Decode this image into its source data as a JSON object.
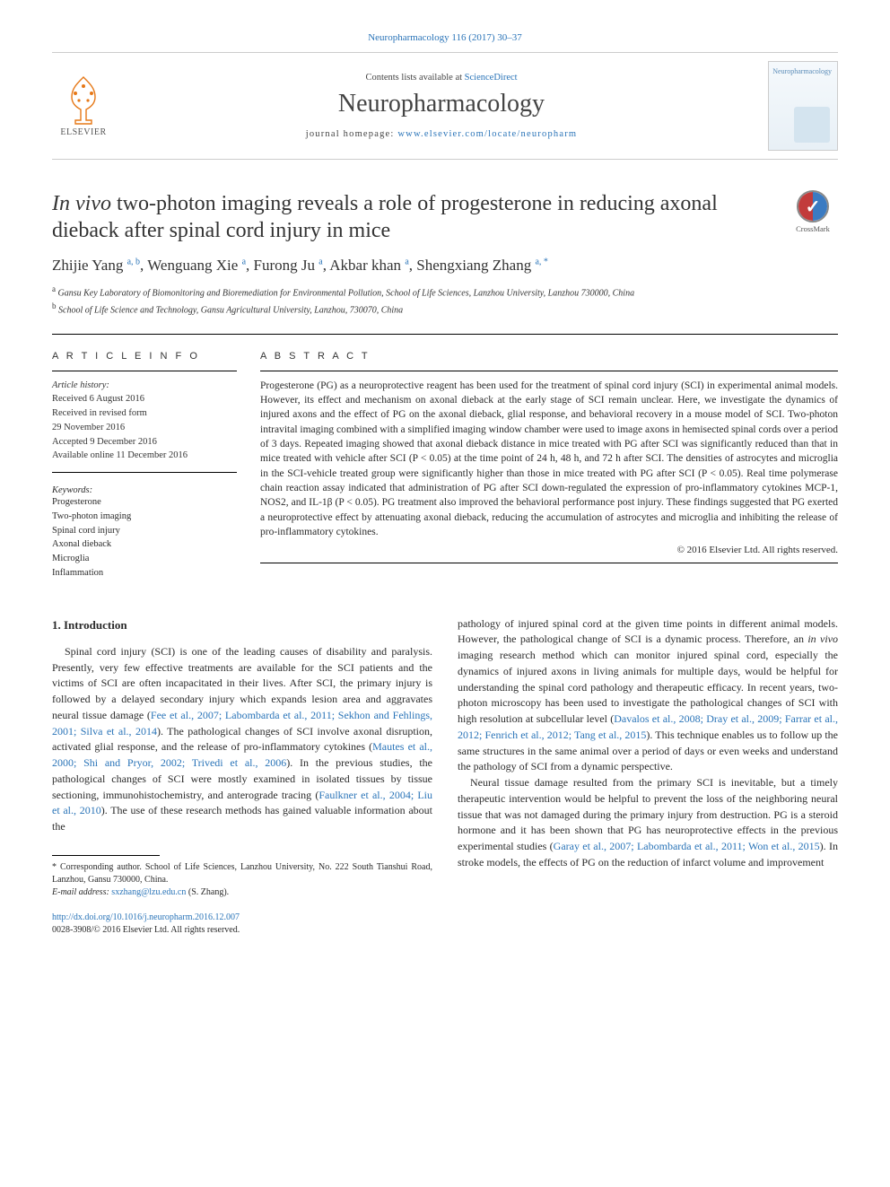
{
  "citation": "Neuropharmacology 116 (2017) 30–37",
  "masthead": {
    "contents_prefix": "Contents lists available at ",
    "contents_link": "ScienceDirect",
    "journal": "Neuropharmacology",
    "homepage_prefix": "journal homepage: ",
    "homepage_link": "www.elsevier.com/locate/neuropharm",
    "publisher": "ELSEVIER",
    "cover_title": "Neuropharmacology"
  },
  "title": {
    "italic_lead": "In vivo",
    "rest": " two-photon imaging reveals a role of progesterone in reducing axonal dieback after spinal cord injury in mice"
  },
  "crossmark_label": "CrossMark",
  "authors": [
    {
      "name": "Zhijie Yang",
      "sup": "a, b"
    },
    {
      "name": "Wenguang Xie",
      "sup": "a"
    },
    {
      "name": "Furong Ju",
      "sup": "a"
    },
    {
      "name": "Akbar khan",
      "sup": "a"
    },
    {
      "name": "Shengxiang Zhang",
      "sup": "a, *"
    }
  ],
  "affiliations": [
    {
      "sup": "a",
      "text": "Gansu Key Laboratory of Biomonitoring and Bioremediation for Environmental Pollution, School of Life Sciences, Lanzhou University, Lanzhou 730000, China"
    },
    {
      "sup": "b",
      "text": "School of Life Science and Technology, Gansu Agricultural University, Lanzhou, 730070, China"
    }
  ],
  "article_info": {
    "label": "A R T I C L E  I N F O",
    "history_label": "Article history:",
    "history": [
      "Received 6 August 2016",
      "Received in revised form",
      "29 November 2016",
      "Accepted 9 December 2016",
      "Available online 11 December 2016"
    ],
    "keywords_label": "Keywords:",
    "keywords": [
      "Progesterone",
      "Two-photon imaging",
      "Spinal cord injury",
      "Axonal dieback",
      "Microglia",
      "Inflammation"
    ]
  },
  "abstract": {
    "label": "A B S T R A C T",
    "text": "Progesterone (PG) as a neuroprotective reagent has been used for the treatment of spinal cord injury (SCI) in experimental animal models. However, its effect and mechanism on axonal dieback at the early stage of SCI remain unclear. Here, we investigate the dynamics of injured axons and the effect of PG on the axonal dieback, glial response, and behavioral recovery in a mouse model of SCI. Two-photon intravital imaging combined with a simplified imaging window chamber were used to image axons in hemisected spinal cords over a period of 3 days. Repeated imaging showed that axonal dieback distance in mice treated with PG after SCI was significantly reduced than that in mice treated with vehicle after SCI (P < 0.05) at the time point of 24 h, 48 h, and 72 h after SCI. The densities of astrocytes and microglia in the SCI-vehicle treated group were significantly higher than those in mice treated with PG after SCI (P < 0.05). Real time polymerase chain reaction assay indicated that administration of PG after SCI down-regulated the expression of pro-inflammatory cytokines MCP-1, NOS2, and IL-1β (P < 0.05). PG treatment also improved the behavioral performance post injury. These findings suggested that PG exerted a neuroprotective effect by attenuating axonal dieback, reducing the accumulation of astrocytes and microglia and inhibiting the release of pro-inflammatory cytokines.",
    "copyright": "© 2016 Elsevier Ltd. All rights reserved."
  },
  "body": {
    "heading": "1. Introduction",
    "left_para": "Spinal cord injury (SCI) is one of the leading causes of disability and paralysis. Presently, very few effective treatments are available for the SCI patients and the victims of SCI are often incapacitated in their lives. After SCI, the primary injury is followed by a delayed secondary injury which expands lesion area and aggravates neural tissue damage (",
    "left_ref1": "Fee et al., 2007; Labombarda et al., 2011; Sekhon and Fehlings, 2001; Silva et al., 2014",
    "left_mid1": "). The pathological changes of SCI involve axonal disruption, activated glial response, and the release of pro-inflammatory cytokines (",
    "left_ref2": "Mautes et al., 2000; Shi and Pryor, 2002; Trivedi et al., 2006",
    "left_mid2": "). In the previous studies, the pathological changes of SCI were mostly examined in isolated tissues by tissue sectioning, immunohistochemistry, and anterograde tracing (",
    "left_ref3": "Faulkner et al., 2004; Liu et al., 2010",
    "left_end": "). The use of these research methods has gained valuable information about the",
    "right_p1_a": "pathology of injured spinal cord at the given time points in different animal models. However, the pathological change of SCI is a dynamic process. Therefore, an ",
    "right_p1_italic": "in vivo",
    "right_p1_b": " imaging research method which can monitor injured spinal cord, especially the dynamics of injured axons in living animals for multiple days, would be helpful for understanding the spinal cord pathology and therapeutic efficacy. In recent years, two-photon microscopy has been used to investigate the pathological changes of SCI with high resolution at subcellular level (",
    "right_ref1": "Davalos et al., 2008; Dray et al., 2009; Farrar et al., 2012; Fenrich et al., 2012; Tang et al., 2015",
    "right_p1_c": "). This technique enables us to follow up the same structures in the same animal over a period of days or even weeks and understand the pathology of SCI from a dynamic perspective.",
    "right_p2_a": "Neural tissue damage resulted from the primary SCI is inevitable, but a timely therapeutic intervention would be helpful to prevent the loss of the neighboring neural tissue that was not damaged during the primary injury from destruction. PG is a steroid hormone and it has been shown that PG has neuroprotective effects in the previous experimental studies (",
    "right_ref2": "Garay et al., 2007; Labombarda et al., 2011; Won et al., 2015",
    "right_p2_b": "). In stroke models, the effects of PG on the reduction of infarct volume and improvement"
  },
  "footnotes": {
    "corr": "* Corresponding author. School of Life Sciences, Lanzhou University, No. 222 South Tianshui Road, Lanzhou, Gansu 730000, China.",
    "email_label": "E-mail address:",
    "email": "sxzhang@lzu.edu.cn",
    "email_suffix": " (S. Zhang)."
  },
  "footer": {
    "doi": "http://dx.doi.org/10.1016/j.neuropharm.2016.12.007",
    "issn_line": "0028-3908/© 2016 Elsevier Ltd. All rights reserved."
  },
  "colors": {
    "link": "#2a74b8",
    "text": "#2a2a2a",
    "rule": "#000000"
  }
}
